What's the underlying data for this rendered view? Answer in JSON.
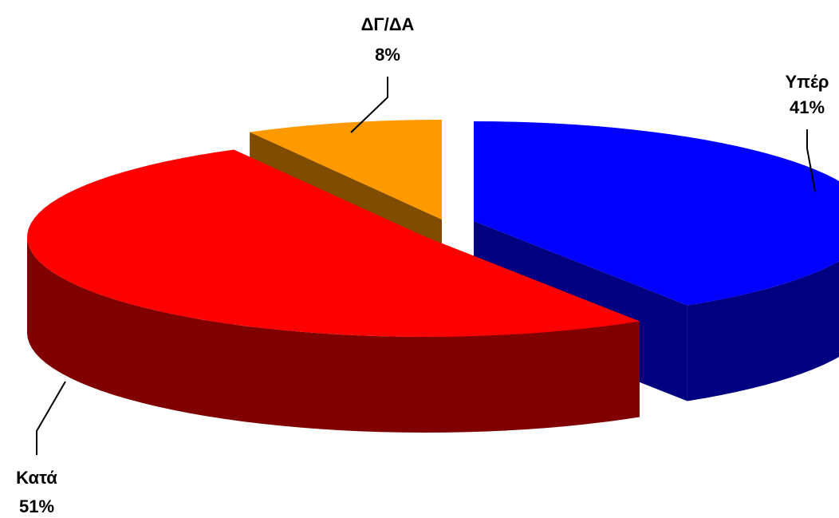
{
  "chart_data": {
    "type": "pie",
    "title": "",
    "style": "3d-exploded",
    "slices": [
      {
        "label": "Υπέρ",
        "value": 41,
        "value_label": "41%",
        "color": "#0000FF",
        "side_color": "#000080"
      },
      {
        "label": "Κατά",
        "value": 51,
        "value_label": "51%",
        "color": "#FF0000",
        "side_color": "#800000"
      },
      {
        "label": "ΔΓ/ΔΑ",
        "value": 8,
        "value_label": "8%",
        "color": "#FF9900",
        "side_color": "#7F4C00"
      }
    ]
  }
}
